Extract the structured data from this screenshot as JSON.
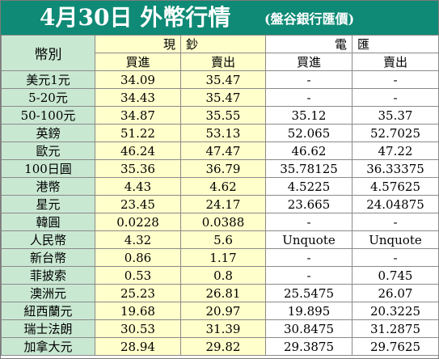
{
  "title": "4月30日 外幣行情",
  "subtitle": "(盤谷銀行匯價)",
  "header": {
    "currency": "幣別",
    "cash_left": "現",
    "cash_right": "鈔",
    "wire_left": "電",
    "wire_right": "匯",
    "buy": "買進",
    "sell": "賣出"
  },
  "rows": [
    {
      "currency": "美元1元",
      "cash_buy": "34.09",
      "cash_sell": "35.47",
      "wire_buy": "-",
      "wire_sell": "-"
    },
    {
      "currency": "5-20元",
      "cash_buy": "34.43",
      "cash_sell": "35.47",
      "wire_buy": "-",
      "wire_sell": "-"
    },
    {
      "currency": "50-100元",
      "cash_buy": "34.87",
      "cash_sell": "35.55",
      "wire_buy": "35.12",
      "wire_sell": "35.37"
    },
    {
      "currency": "英鎊",
      "cash_buy": "51.22",
      "cash_sell": "53.13",
      "wire_buy": "52.065",
      "wire_sell": "52.7025"
    },
    {
      "currency": "歐元",
      "cash_buy": "46.24",
      "cash_sell": "47.47",
      "wire_buy": "46.62",
      "wire_sell": "47.22"
    },
    {
      "currency": "100日圓",
      "cash_buy": "35.36",
      "cash_sell": "36.79",
      "wire_buy": "35.78125",
      "wire_sell": "36.33375"
    },
    {
      "currency": "港幣",
      "cash_buy": "4.43",
      "cash_sell": "4.62",
      "wire_buy": "4.5225",
      "wire_sell": "4.57625"
    },
    {
      "currency": "星元",
      "cash_buy": "23.45",
      "cash_sell": "24.17",
      "wire_buy": "23.665",
      "wire_sell": "24.04875"
    },
    {
      "currency": "韓圓",
      "cash_buy": "0.0228",
      "cash_sell": "0.0388",
      "wire_buy": "-",
      "wire_sell": "-"
    },
    {
      "currency": "人民幣",
      "cash_buy": "4.32",
      "cash_sell": "5.6",
      "wire_buy": "Unquote",
      "wire_sell": "Unquote"
    },
    {
      "currency": "新台幣",
      "cash_buy": "0.86",
      "cash_sell": "1.17",
      "wire_buy": "-",
      "wire_sell": "-"
    },
    {
      "currency": "菲披索",
      "cash_buy": "0.53",
      "cash_sell": "0.8",
      "wire_buy": "-",
      "wire_sell": "0.745"
    },
    {
      "currency": "澳洲元",
      "cash_buy": "25.23",
      "cash_sell": "26.81",
      "wire_buy": "25.5475",
      "wire_sell": "26.07"
    },
    {
      "currency": "紐西蘭元",
      "cash_buy": "19.68",
      "cash_sell": "20.97",
      "wire_buy": "19.895",
      "wire_sell": "20.3225"
    },
    {
      "currency": "瑞士法朗",
      "cash_buy": "30.53",
      "cash_sell": "31.39",
      "wire_buy": "30.8475",
      "wire_sell": "31.2875"
    },
    {
      "currency": "加拿大元",
      "cash_buy": "28.94",
      "cash_sell": "29.82",
      "wire_buy": "29.3875",
      "wire_sell": "29.7625"
    }
  ],
  "colors": {
    "title_bg": "#0f8a76",
    "label_col": "#c9e8d2",
    "cash_cols": "#ffffcc",
    "wire_cols": "#ffffff"
  }
}
